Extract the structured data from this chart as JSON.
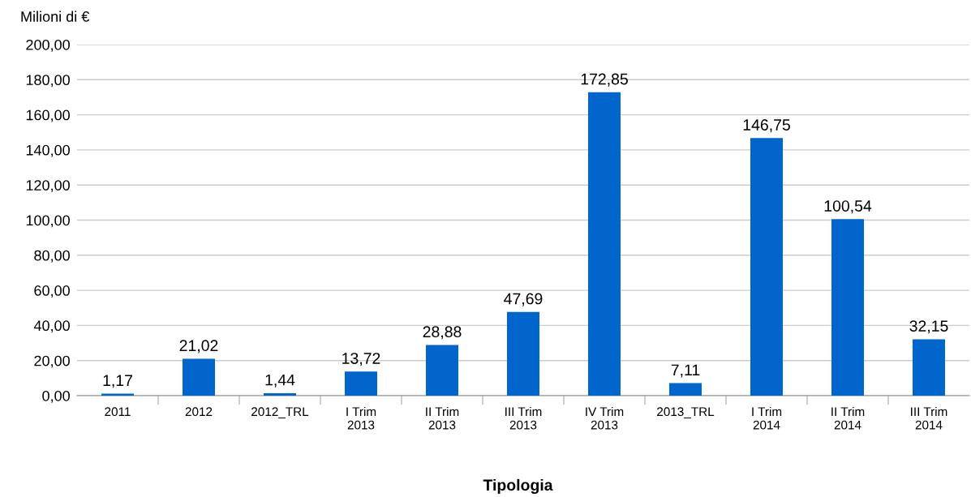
{
  "chart_data": {
    "type": "bar",
    "ylabel": "Milioni di €",
    "xlabel": "Tipologia",
    "categories": [
      "2011",
      "2012",
      "2012_TRL",
      "I Trim\n2013",
      "II Trim\n2013",
      "III Trim\n2013",
      "IV Trim\n2013",
      "2013_TRL",
      "I Trim\n2014",
      "II Trim\n2014",
      "III Trim\n2014"
    ],
    "values": [
      1.17,
      21.02,
      1.44,
      13.72,
      28.88,
      47.69,
      172.85,
      7.11,
      146.75,
      100.54,
      32.15
    ],
    "value_labels": [
      "1,17",
      "21,02",
      "1,44",
      "13,72",
      "28,88",
      "47,69",
      "172,85",
      "7,11",
      "146,75",
      "100,54",
      "32,15"
    ],
    "color": "#0066cc",
    "ylim": [
      0,
      200
    ],
    "yticks": [
      {
        "value": 0,
        "label": "0,00"
      },
      {
        "value": 20,
        "label": "20,00"
      },
      {
        "value": 40,
        "label": "40,00"
      },
      {
        "value": 60,
        "label": "60,00"
      },
      {
        "value": 80,
        "label": "80,00"
      },
      {
        "value": 100,
        "label": "100,00"
      },
      {
        "value": 120,
        "label": "120,00"
      },
      {
        "value": 140,
        "label": "140,00"
      },
      {
        "value": 160,
        "label": "160,00"
      },
      {
        "value": 180,
        "label": "180,00"
      },
      {
        "value": 200,
        "label": "200,00"
      }
    ],
    "grid": "y",
    "legend": false
  }
}
